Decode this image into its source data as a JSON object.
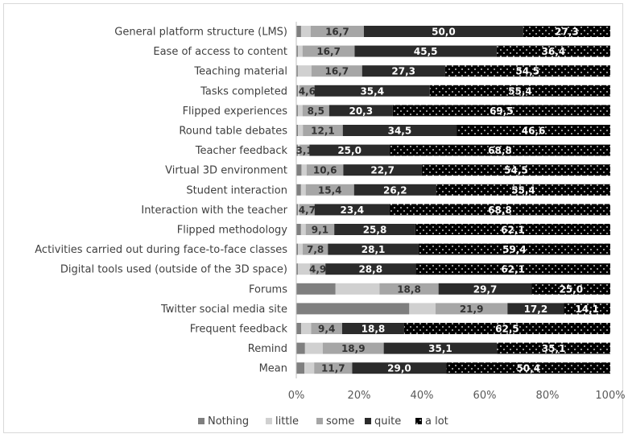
{
  "chart_data": {
    "type": "bar",
    "orientation": "horizontal",
    "stacked": "percent",
    "categories": [
      "General platform structure (LMS)",
      "Ease of access to content",
      "Teaching material",
      "Tasks completed",
      "Flipped experiences",
      "Round table debates",
      "Teacher feedback",
      "Virtual 3D environment",
      "Student interaction",
      "Interaction with the teacher",
      "Flipped methodology",
      "Activities carried out during face-to-face classes",
      "Digital tools used (outside of the 3D space)",
      "Forums",
      "Twitter social media site",
      "Frequent feedback",
      "Remind",
      "Mean"
    ],
    "series": [
      {
        "name": "Nothing",
        "values": [
          1.5,
          0.5,
          0.5,
          0.5,
          0.5,
          0.5,
          0.5,
          1.5,
          1.5,
          0.5,
          1.5,
          0.5,
          0.5,
          12.5,
          34.4,
          1.5,
          2.7,
          2.5
        ]
      },
      {
        "name": "little",
        "values": [
          3.0,
          1.5,
          4.5,
          0.5,
          1.5,
          1.5,
          0.5,
          1.5,
          1.5,
          0.5,
          1.5,
          1.5,
          3.9,
          14.0,
          8.0,
          3.0,
          5.5,
          3.0
        ]
      },
      {
        "name": "some",
        "values": [
          16.7,
          16.7,
          16.7,
          4.6,
          8.5,
          12.1,
          3.1,
          10.6,
          15.4,
          4.7,
          9.1,
          7.8,
          4.9,
          18.8,
          21.9,
          9.4,
          18.9,
          11.7
        ]
      },
      {
        "name": "quite",
        "values": [
          50.0,
          45.5,
          27.3,
          35.4,
          20.3,
          34.5,
          25.0,
          22.7,
          26.2,
          23.4,
          25.8,
          28.1,
          28.8,
          29.7,
          17.2,
          18.8,
          35.1,
          29.0
        ]
      },
      {
        "name": "a lot",
        "values": [
          27.3,
          36.4,
          54.5,
          55.4,
          69.5,
          46.6,
          68.8,
          54.5,
          55.4,
          68.8,
          62.1,
          59.4,
          62.1,
          25.0,
          14.1,
          62.5,
          35.1,
          50.4
        ]
      }
    ],
    "data_labels": {
      "some": [
        "16,7",
        "16,7",
        "16,7",
        "4,6",
        "8,5",
        "12,1",
        "3,1",
        "10,6",
        "15,4",
        "4,7",
        "9,1",
        "7,8",
        "4,9",
        "18,8",
        "21,9",
        "9,4",
        "18,9",
        "11,7"
      ],
      "quite": [
        "50,0",
        "45,5",
        "27,3",
        "35,4",
        "20,3",
        "34,5",
        "25,0",
        "22,7",
        "26,2",
        "23,4",
        "25,8",
        "28,1",
        "28,8",
        "29,7",
        "17,2",
        "18,8",
        "35,1",
        "29,0"
      ],
      "a lot": [
        "27,3",
        "36,4",
        "54,5",
        "55,4",
        "69,5",
        "46,6",
        "68,8",
        "54,5",
        "55,4",
        "68,8",
        "62,1",
        "59,4",
        "62,1",
        "25,0",
        "14,1",
        "62,5",
        "35,1",
        "50,4"
      ]
    },
    "x_ticks": [
      "0%",
      "20%",
      "40%",
      "60%",
      "80%",
      "100%"
    ],
    "xlim": [
      0,
      100
    ],
    "grid": false,
    "legend_position": "bottom",
    "colors": {
      "Nothing": "#7f7f7f",
      "little": "#d0d0d0",
      "some": "#a6a6a6",
      "quite": "#2b2b2b",
      "a lot": "#000000"
    },
    "a_lot_pattern": "white-dotted"
  }
}
